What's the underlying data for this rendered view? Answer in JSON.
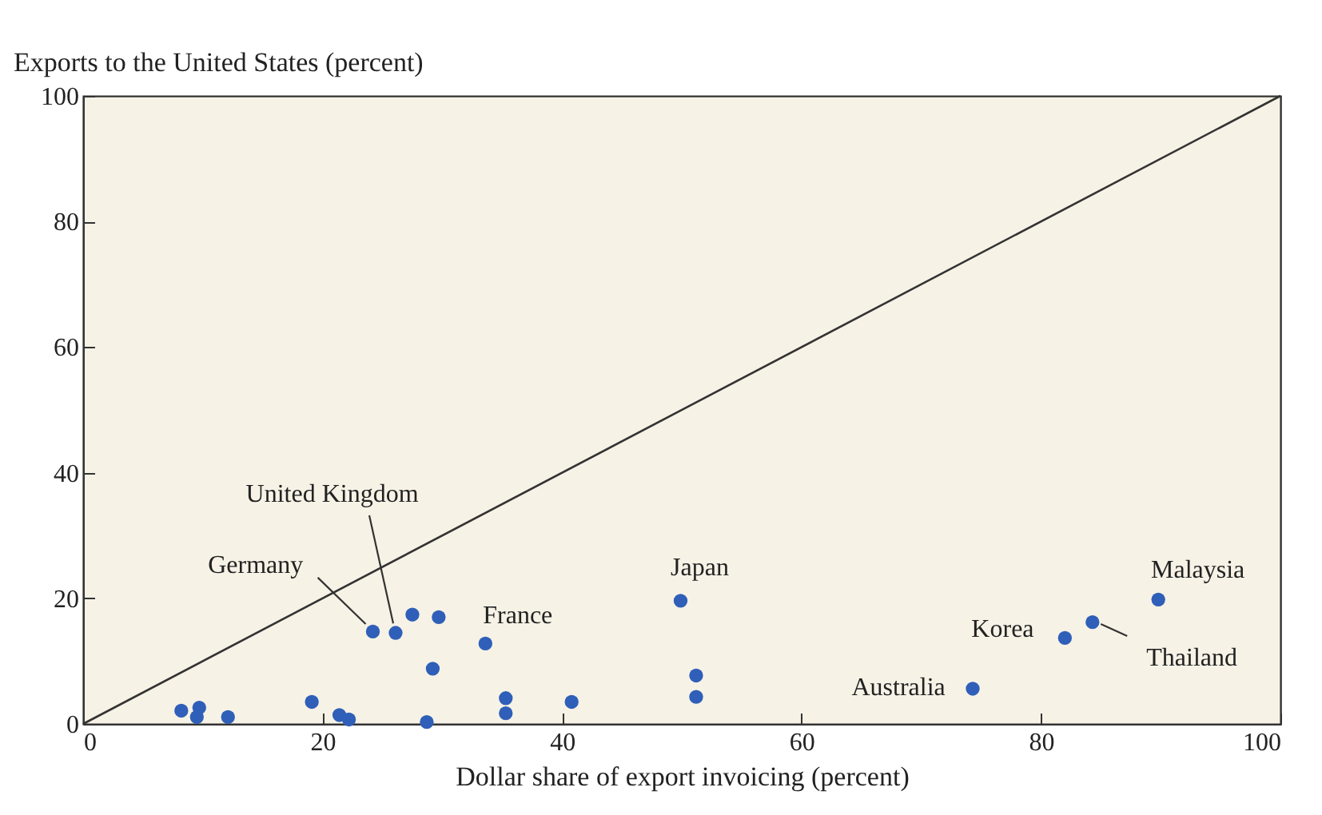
{
  "chart_data": {
    "type": "scatter",
    "xlabel": "Dollar share of export invoicing (percent)",
    "ylabel": "Exports to the United States (percent)",
    "xlim": [
      0,
      100
    ],
    "xticks": [
      0,
      20,
      40,
      60,
      80,
      100
    ],
    "ylim": [
      0,
      100
    ],
    "yticks": [
      0,
      20,
      40,
      60,
      80,
      100
    ],
    "grid": false,
    "series": [
      {
        "marker": "circle",
        "color": "#2f5fb8",
        "x": [
          8.2,
          9.7,
          9.5,
          12.1,
          19.1,
          21.4,
          22.2,
          24.2,
          26.1,
          27.5,
          29.7,
          29.2,
          28.7,
          33.6,
          35.3,
          35.3,
          40.8,
          49.9,
          51.2,
          51.2,
          74.3,
          82.0,
          84.3,
          89.8
        ],
        "values": [
          2.1,
          2.6,
          1.1,
          1.1,
          3.5,
          1.4,
          0.7,
          14.7,
          14.5,
          17.4,
          17.0,
          8.8,
          0.3,
          12.8,
          4.1,
          1.7,
          3.5,
          19.6,
          7.7,
          4.3,
          5.6,
          13.7,
          16.2,
          19.8
        ]
      },
      {
        "type": "line",
        "marker": "none",
        "color": "#333333",
        "line_style": "solid",
        "x": [
          0,
          100
        ],
        "values": [
          0,
          100
        ]
      }
    ],
    "annotations": [
      {
        "text": "Germany",
        "x": 24.2,
        "y": 14.7
      },
      {
        "text": "United Kingdom",
        "x": 26.1,
        "y": 14.5
      },
      {
        "text": "France",
        "x": 33.6,
        "y": 12.8
      },
      {
        "text": "Japan",
        "x": 49.9,
        "y": 19.6
      },
      {
        "text": "Australia",
        "x": 74.3,
        "y": 5.6
      },
      {
        "text": "Korea",
        "x": 82.0,
        "y": 13.7
      },
      {
        "text": "Thailand",
        "x": 84.3,
        "y": 16.2
      },
      {
        "text": "Malaysia",
        "x": 89.8,
        "y": 19.8
      }
    ]
  }
}
